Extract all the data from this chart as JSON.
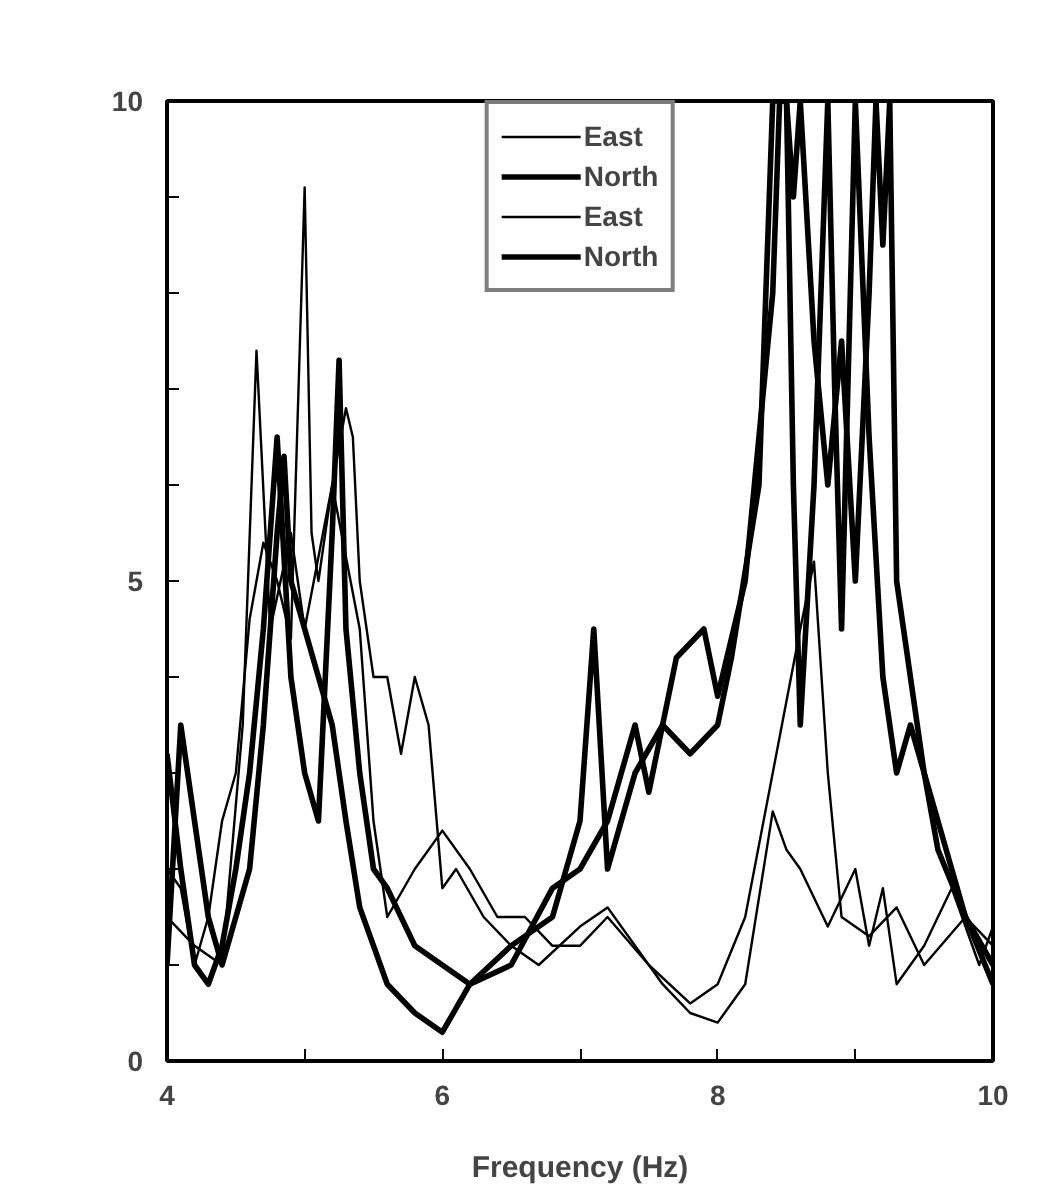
{
  "chart_data": {
    "type": "line",
    "xlabel": "Frequency (Hz)",
    "xlim": [
      4,
      10
    ],
    "ylim": [
      0,
      10
    ],
    "xticks": [
      4,
      {
        "value": 5,
        "label": null
      },
      6,
      {
        "value": 7,
        "label": null
      },
      8,
      {
        "value": 9,
        "label": null
      },
      10
    ],
    "yticks": [
      0,
      {
        "value": 1,
        "label": null
      },
      {
        "value": 2,
        "label": null
      },
      {
        "value": 3,
        "label": null
      },
      {
        "value": 4,
        "label": null
      },
      5,
      {
        "value": 6,
        "label": null
      },
      {
        "value": 7,
        "label": null
      },
      {
        "value": 8,
        "label": null
      },
      {
        "value": 9,
        "label": null
      },
      10
    ],
    "grid": false,
    "legend": "top",
    "marker": "none",
    "line_style": "solid",
    "series": [
      {
        "name": "East",
        "color": "#000000",
        "x": [
          4.0,
          4.1,
          4.2,
          4.3,
          4.4,
          4.5,
          4.6,
          4.7,
          4.8,
          4.9,
          5.0,
          5.05,
          5.1,
          5.2,
          5.3,
          5.35,
          5.4,
          5.5,
          5.6,
          5.7,
          5.8,
          5.9,
          6.0,
          6.1,
          6.3,
          6.5,
          6.7,
          7.0,
          7.2,
          7.4,
          7.6,
          7.8,
          8.0,
          8.2,
          8.4,
          8.5,
          8.6,
          8.8,
          9.0,
          9.1,
          9.2,
          9.3,
          9.5,
          9.7,
          9.9,
          10.0
        ],
        "values": [
          2.0,
          1.8,
          1.0,
          1.5,
          2.5,
          3.0,
          4.6,
          5.4,
          5.0,
          4.4,
          9.1,
          5.5,
          5.0,
          6.0,
          6.8,
          6.5,
          5.0,
          4.0,
          4.0,
          3.2,
          4.0,
          3.5,
          1.8,
          2.0,
          1.5,
          1.2,
          1.0,
          1.4,
          1.6,
          1.2,
          0.8,
          0.5,
          0.4,
          0.8,
          2.6,
          2.2,
          2.0,
          1.4,
          2.0,
          1.2,
          1.8,
          0.8,
          1.2,
          1.8,
          1.0,
          1.4
        ]
      },
      {
        "name": "North",
        "color": "#000000",
        "x": [
          4.0,
          4.1,
          4.2,
          4.3,
          4.4,
          4.5,
          4.6,
          4.7,
          4.8,
          4.9,
          5.0,
          5.1,
          5.2,
          5.25,
          5.3,
          5.4,
          5.5,
          5.6,
          5.8,
          6.0,
          6.2,
          6.5,
          6.8,
          7.0,
          7.1,
          7.2,
          7.4,
          7.6,
          7.8,
          8.0,
          8.1,
          8.3,
          8.4,
          8.5,
          8.55,
          8.6,
          8.7,
          8.8,
          8.85,
          8.9,
          9.0,
          9.1,
          9.2,
          9.3,
          9.4,
          9.6,
          9.8,
          10.0
        ],
        "values": [
          3.2,
          2.0,
          1.0,
          0.8,
          1.2,
          2.0,
          3.0,
          4.5,
          6.5,
          4.0,
          3.0,
          2.5,
          5.5,
          7.3,
          4.5,
          3.0,
          2.0,
          1.8,
          1.2,
          1.0,
          0.8,
          1.2,
          1.5,
          2.5,
          4.5,
          2.0,
          3.0,
          3.5,
          3.2,
          3.5,
          4.2,
          6.0,
          10,
          10,
          6.0,
          3.5,
          6.0,
          10,
          7.0,
          4.5,
          10,
          6.5,
          4.0,
          3.0,
          3.5,
          2.5,
          1.5,
          1.0
        ]
      },
      {
        "name": "East",
        "color": "#000000",
        "x": [
          4.0,
          4.2,
          4.4,
          4.55,
          4.65,
          4.75,
          4.9,
          5.0,
          5.2,
          5.4,
          5.5,
          5.6,
          5.8,
          6.0,
          6.2,
          6.4,
          6.6,
          6.8,
          7.0,
          7.2,
          7.5,
          7.8,
          8.0,
          8.2,
          8.4,
          8.6,
          8.7,
          8.8,
          8.9,
          9.1,
          9.3,
          9.5,
          9.8,
          10.0
        ],
        "values": [
          1.5,
          1.2,
          1.0,
          3.5,
          7.4,
          4.5,
          5.5,
          4.5,
          6.0,
          4.5,
          2.5,
          1.5,
          2.0,
          2.4,
          2.0,
          1.5,
          1.5,
          1.2,
          1.2,
          1.5,
          1.0,
          0.6,
          0.8,
          1.5,
          3.0,
          4.5,
          5.2,
          3.0,
          1.5,
          1.3,
          1.6,
          1.0,
          1.5,
          1.2
        ]
      },
      {
        "name": "North",
        "color": "#000000",
        "x": [
          4.0,
          4.1,
          4.2,
          4.3,
          4.4,
          4.5,
          4.6,
          4.7,
          4.8,
          4.85,
          4.9,
          5.0,
          5.1,
          5.2,
          5.3,
          5.4,
          5.5,
          5.6,
          5.8,
          6.0,
          6.2,
          6.5,
          6.8,
          7.0,
          7.2,
          7.4,
          7.5,
          7.7,
          7.9,
          8.0,
          8.2,
          8.3,
          8.4,
          8.45,
          8.5,
          8.55,
          8.6,
          8.7,
          8.8,
          8.9,
          9.0,
          9.1,
          9.15,
          9.2,
          9.25,
          9.3,
          9.4,
          9.5,
          9.6,
          9.8,
          10.0
        ],
        "values": [
          1.0,
          3.5,
          2.5,
          1.5,
          1.0,
          1.5,
          2.0,
          3.5,
          5.5,
          6.3,
          5.0,
          4.5,
          4.0,
          3.5,
          2.5,
          1.6,
          1.2,
          0.8,
          0.5,
          0.3,
          0.8,
          1.0,
          1.8,
          2.0,
          2.5,
          3.5,
          2.8,
          4.2,
          4.5,
          3.8,
          5.0,
          6.5,
          8.0,
          10,
          10,
          9.0,
          10,
          7.5,
          6.0,
          7.5,
          5.0,
          8.0,
          10,
          8.5,
          10,
          5.0,
          4.0,
          3.0,
          2.2,
          1.5,
          0.8
        ]
      }
    ]
  }
}
